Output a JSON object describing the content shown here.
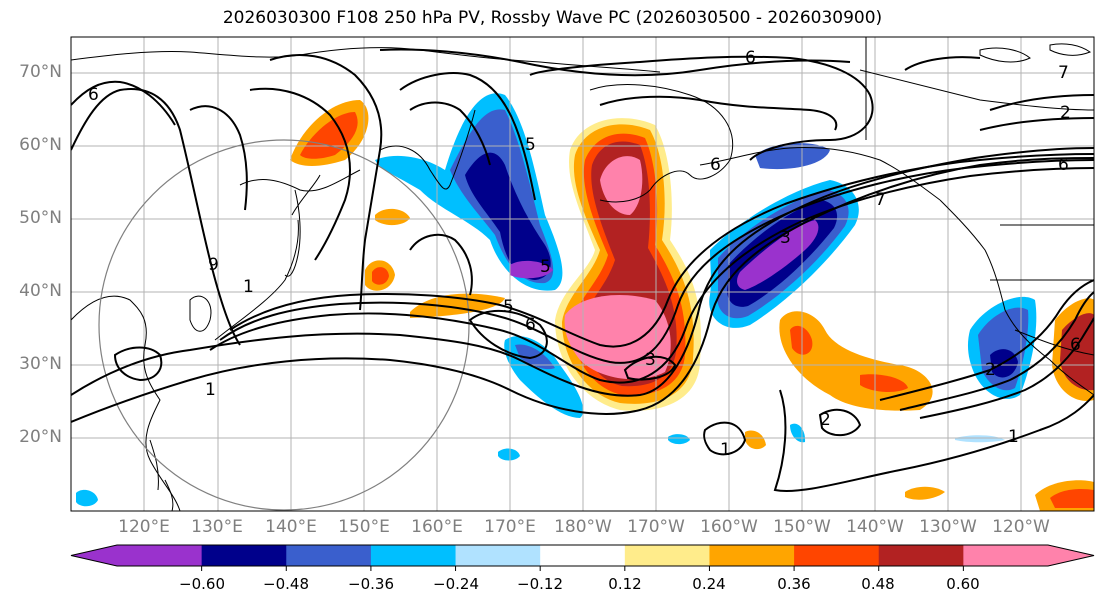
{
  "title": "2026030300 F108 250 hPa PV, Rossby Wave PC (2026030500 - 2026030900)",
  "lat_labels": [
    "70°N",
    "60°N",
    "50°N",
    "40°N",
    "30°N",
    "20°N"
  ],
  "lon_labels": [
    "120°E",
    "130°E",
    "140°E",
    "150°E",
    "160°E",
    "170°E",
    "180°W",
    "170°W",
    "160°W",
    "150°W",
    "140°W",
    "130°W",
    "120°W"
  ],
  "contour_labels": [
    "6",
    "6",
    "5",
    "6",
    "5",
    "1",
    "1",
    "3",
    "6",
    "1",
    "6",
    "7",
    "2",
    "1",
    "3",
    "2",
    "6",
    "5",
    "7",
    "9",
    "2"
  ],
  "colorbar": {
    "ticks": [
      "−0.60",
      "−0.48",
      "−0.36",
      "−0.24",
      "−0.12",
      "0.12",
      "0.24",
      "0.36",
      "0.48",
      "0.60"
    ],
    "colors": [
      "#9a32cd",
      "#00008b",
      "#3a5fcd",
      "#00bfff",
      "#b0e2ff",
      "#ffffff",
      "#ffec8b",
      "#ffa500",
      "#ff4500",
      "#b22222",
      "#ff82ab"
    ]
  },
  "map_colors": {
    "land_outline": "#000000",
    "grid": "#b3b3b3",
    "circle": "#808080"
  }
}
